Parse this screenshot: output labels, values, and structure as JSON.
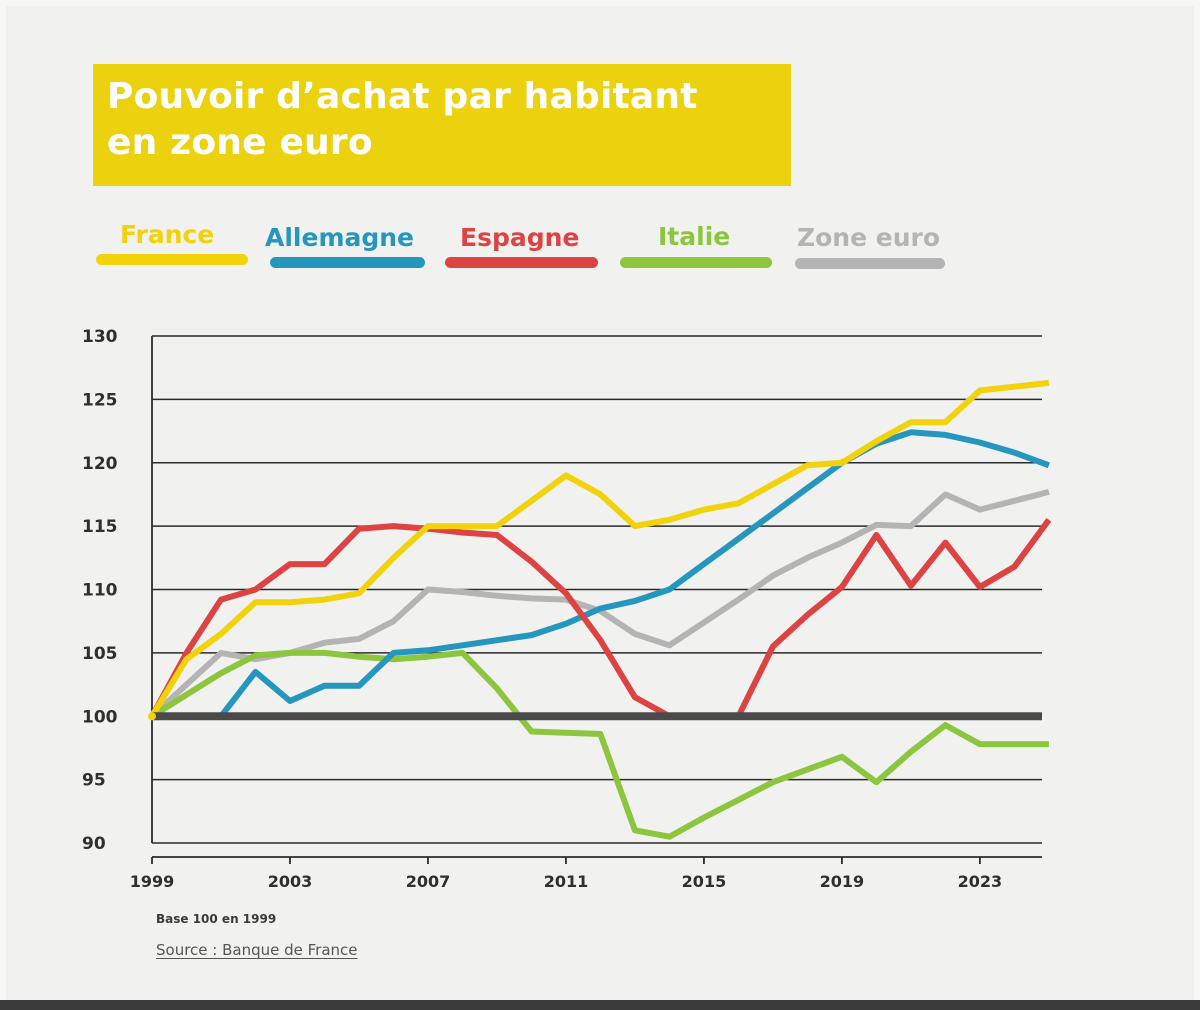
{
  "chart_data": {
    "type": "line",
    "title": "Pouvoir d’achat par habitant en zone euro",
    "title_lines": [
      "Pouvoir d’achat par habitant",
      "en zone euro"
    ],
    "xlabel": "",
    "ylabel": "",
    "x": [
      1999,
      2000,
      2001,
      2002,
      2003,
      2004,
      2005,
      2006,
      2007,
      2008,
      2009,
      2010,
      2011,
      2012,
      2013,
      2014,
      2015,
      2016,
      2017,
      2018,
      2019,
      2020,
      2021,
      2022,
      2023,
      2024,
      2025
    ],
    "xticks": [
      1999,
      2003,
      2007,
      2011,
      2015,
      2019,
      2023
    ],
    "xtick_labels": [
      "1999",
      "2003",
      "2007",
      "2011",
      "2015",
      "2019",
      "2023"
    ],
    "yticks": [
      90,
      95,
      100,
      105,
      110,
      115,
      120,
      125,
      130
    ],
    "ytick_labels": [
      "90",
      "95",
      "100",
      "105",
      "110",
      "115",
      "120",
      "125",
      "130"
    ],
    "xlim": [
      1999,
      2024.8
    ],
    "ylim": [
      90,
      130
    ],
    "grid": true,
    "baseline": 100,
    "legend_position": "top",
    "series": [
      {
        "name": "France",
        "color": "#f2d20b",
        "values": [
          100,
          104.5,
          106.5,
          109,
          109,
          109.2,
          109.7,
          112.5,
          115,
          115,
          115,
          117,
          119,
          117.5,
          115,
          115.5,
          116.3,
          116.8,
          118.3,
          119.8,
          120,
          121.7,
          123.2,
          123.2,
          125.7,
          126,
          126.3
        ]
      },
      {
        "name": "Allemagne",
        "color": "#2596be",
        "values": [
          100,
          100,
          100,
          103.5,
          101.2,
          102.4,
          102.4,
          105,
          105.2,
          105.6,
          106,
          106.4,
          107.3,
          108.5,
          109.1,
          110,
          112,
          114,
          116,
          118,
          120,
          121.5,
          122.4,
          122.2,
          121.6,
          120.8,
          119.8
        ]
      },
      {
        "name": "Espagne",
        "color": "#de4343",
        "values": [
          100,
          105,
          109.2,
          110,
          112,
          112,
          114.8,
          115,
          114.8,
          114.5,
          114.3,
          112.2,
          109.7,
          106,
          101.5,
          100,
          100,
          100,
          105.5,
          108,
          110.2,
          114.3,
          110.3,
          113.7,
          110.2,
          111.8,
          115.5
        ]
      },
      {
        "name": "Italie",
        "color": "#8cc63f",
        "values": [
          100,
          101.7,
          103.4,
          104.8,
          105,
          105,
          104.7,
          104.5,
          104.7,
          105,
          102.2,
          98.8,
          98.7,
          98.6,
          91,
          90.5,
          92,
          93.4,
          94.8,
          95.8,
          96.8,
          94.8,
          97.2,
          99.3,
          97.8,
          97.8,
          97.8
        ]
      },
      {
        "name": "Zone euro",
        "color": "#b4b4b4",
        "values": [
          100,
          102.5,
          105,
          104.5,
          105,
          105.8,
          106.1,
          107.5,
          110,
          109.8,
          109.5,
          109.3,
          109.2,
          108.3,
          106.5,
          105.6,
          107.4,
          109.2,
          111.1,
          112.5,
          113.7,
          115.1,
          115,
          117.5,
          116.3,
          117,
          117.7
        ]
      }
    ],
    "footnote": "Base 100 en 1999",
    "source": "Source : Banque de France"
  }
}
